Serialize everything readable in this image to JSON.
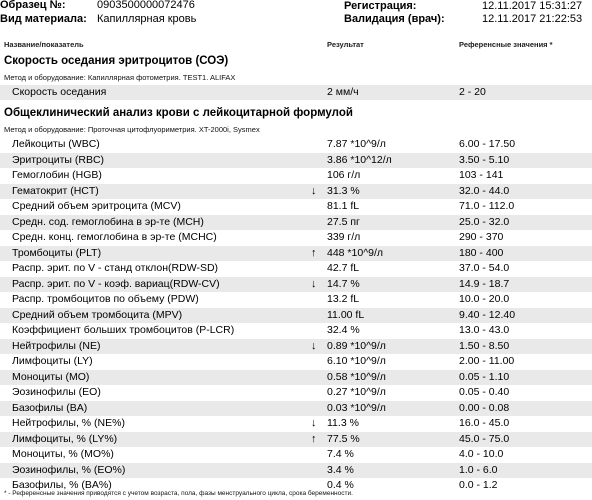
{
  "header": {
    "sample_label": "Образец №:",
    "sample_value": "0903500000072476",
    "material_label": "Вид материала:",
    "material_value": "Капиллярная кровь",
    "registration_label": "Регистрация:",
    "registration_value": "12.11.2017  15:31:27",
    "validation_label": "Валидация (врач):",
    "validation_value": "12.11.2017  21:22:53"
  },
  "columns": {
    "name": "Название/показатель",
    "result": "Результат",
    "reference": "Референсные значения *"
  },
  "esr": {
    "title": "Скорость оседания эритроцитов (СОЭ)",
    "method": "Метод и оборудование:  Капиллярная фотометрия. TEST1. ALIFAX",
    "rows": [
      {
        "name": "Скорость оседания",
        "flag": "",
        "value": "2 мм/ч",
        "ref": "2 - 20"
      }
    ]
  },
  "cbc": {
    "title": "Общеклинический анализ крови с лейкоцитарной формулой",
    "method": "Метод и оборудование:  Проточная цитофлуориметрия. XT-2000i, Sysmex",
    "rows": [
      {
        "name": "Лейкоциты (WBC)",
        "flag": "",
        "value": "7.87 *10^9/л",
        "ref": "6.00 - 17.50"
      },
      {
        "name": "Эритроциты (RBC)",
        "flag": "",
        "value": "3.86 *10^12/л",
        "ref": "3.50 - 5.10"
      },
      {
        "name": "Гемоглобин (HGB)",
        "flag": "",
        "value": "106 г/л",
        "ref": "103 - 141"
      },
      {
        "name": "Гематокрит (HCT)",
        "flag": "↓",
        "value": "31.3 %",
        "ref": "32.0 - 44.0"
      },
      {
        "name": "Средний объем эритроцита (MCV)",
        "flag": "",
        "value": "81.1 fL",
        "ref": "71.0 - 112.0"
      },
      {
        "name": "Средн. сод. гемоглобина в эр-те (MCH)",
        "flag": "",
        "value": "27.5 пг",
        "ref": "25.0 - 32.0"
      },
      {
        "name": "Средн. конц. гемоглобина в эр-те (MCHC)",
        "flag": "",
        "value": "339 г/л",
        "ref": "290 - 370"
      },
      {
        "name": "Тромбоциты (PLT)",
        "flag": "↑",
        "value": "448 *10^9/л",
        "ref": "180 - 400"
      },
      {
        "name": "Распр. эрит. по V - станд отклон(RDW-SD)",
        "flag": "",
        "value": "42.7 fL",
        "ref": "37.0 - 54.0"
      },
      {
        "name": "Распр. эрит. по V - коэф. вариац(RDW-CV)",
        "flag": "↓",
        "value": "14.7 %",
        "ref": "14.9 - 18.7"
      },
      {
        "name": "Распр. тромбоцитов по объему (PDW)",
        "flag": "",
        "value": "13.2 fL",
        "ref": "10.0 - 20.0"
      },
      {
        "name": "Средний объем тромбоцита (MPV)",
        "flag": "",
        "value": "11.00 fL",
        "ref": "9.40 - 12.40"
      },
      {
        "name": "Коэффициент больших тромбоцитов (P-LCR)",
        "flag": "",
        "value": "32.4 %",
        "ref": "13.0 - 43.0"
      },
      {
        "name": "Нейтрофилы (NE)",
        "flag": "↓",
        "value": "0.89 *10^9/л",
        "ref": "1.50 - 8.50"
      },
      {
        "name": "Лимфоциты (LY)",
        "flag": "",
        "value": "6.10 *10^9/л",
        "ref": "2.00 - 11.00"
      },
      {
        "name": "Моноциты (MO)",
        "flag": "",
        "value": "0.58 *10^9/л",
        "ref": "0.05 - 1.10"
      },
      {
        "name": "Эозинофилы (EO)",
        "flag": "",
        "value": "0.27 *10^9/л",
        "ref": "0.05 - 0.40"
      },
      {
        "name": "Базофилы (BA)",
        "flag": "",
        "value": "0.03 *10^9/л",
        "ref": "0.00 - 0.08"
      },
      {
        "name": "Нейтрофилы, % (NE%)",
        "flag": "↓",
        "value": "11.3 %",
        "ref": "16.0 - 45.0"
      },
      {
        "name": "Лимфоциты, % (LY%)",
        "flag": "↑",
        "value": "77.5 %",
        "ref": "45.0 - 75.0"
      },
      {
        "name": "Моноциты, % (MO%)",
        "flag": "",
        "value": "7.4 %",
        "ref": "4.0 - 10.0"
      },
      {
        "name": "Эозинофилы, % (EO%)",
        "flag": "",
        "value": "3.4 %",
        "ref": "1.0 - 6.0"
      },
      {
        "name": "Базофилы, % (BA%)",
        "flag": "",
        "value": "0.4 %",
        "ref": "0.0 - 1.2"
      }
    ]
  },
  "footnote": "* - Референсные значения приводятся с учетом возраста, пола, фазы менструального цикла, срока беременности."
}
